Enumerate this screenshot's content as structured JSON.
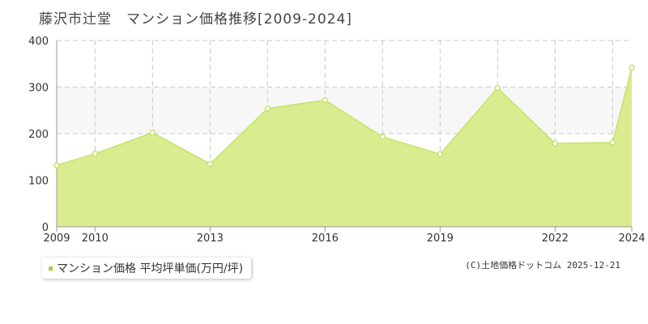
{
  "title": "藤沢市辻堂　マンション価格推移[2009-2024]",
  "colors": {
    "area": "#d9ec90",
    "line": "#c4e36a",
    "point_fill": "#ffffff",
    "band": "#f7f7f7",
    "grid": "#c8c8c8",
    "axis": "#999999"
  },
  "legend": {
    "label": "マンション価格 平均坪単価(万円/坪)",
    "swatch_color": "#a8d040"
  },
  "copyright": "(C)土地価格ドットコム 2025-12-21",
  "chart_data": {
    "type": "area",
    "title": "",
    "xlabel": "",
    "ylabel": "",
    "xlim": [
      2009,
      2024
    ],
    "ylim": [
      0,
      400
    ],
    "y_ticks": [
      0,
      100,
      200,
      300,
      400
    ],
    "x_ticks": [
      2009,
      2010,
      2013,
      2016,
      2019,
      2022,
      2024
    ],
    "x_gridlines": [
      2010,
      2011.5,
      2013,
      2014.5,
      2016,
      2017.5,
      2019,
      2020.5,
      2022,
      2023.5
    ],
    "grid": true,
    "legend_position": "bottom-left",
    "series": [
      {
        "name": "マンション価格 平均坪単価(万円/坪)",
        "x": [
          2009,
          2010,
          2011.5,
          2013,
          2014.5,
          2016,
          2017.5,
          2019,
          2020.5,
          2022,
          2023.5,
          2024
        ],
        "values": [
          132,
          157,
          202,
          135,
          254,
          272,
          193,
          156,
          298,
          179,
          181,
          342
        ]
      }
    ]
  }
}
